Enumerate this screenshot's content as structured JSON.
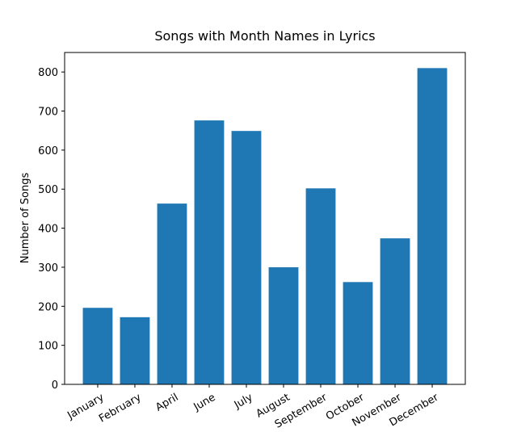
{
  "chart_data": {
    "type": "bar",
    "title": "Songs with Month Names in Lyrics",
    "y_label": "Number of Songs",
    "categories": [
      "January",
      "February",
      "April",
      "June",
      "July",
      "August",
      "September",
      "October",
      "November",
      "December"
    ],
    "values": [
      196,
      172,
      463,
      676,
      649,
      300,
      502,
      262,
      374,
      810
    ],
    "color": "#1f77b4",
    "ylim": [
      0,
      850
    ],
    "yticks": [
      0,
      100,
      200,
      300,
      400,
      500,
      600,
      700,
      800
    ],
    "grid": false
  }
}
